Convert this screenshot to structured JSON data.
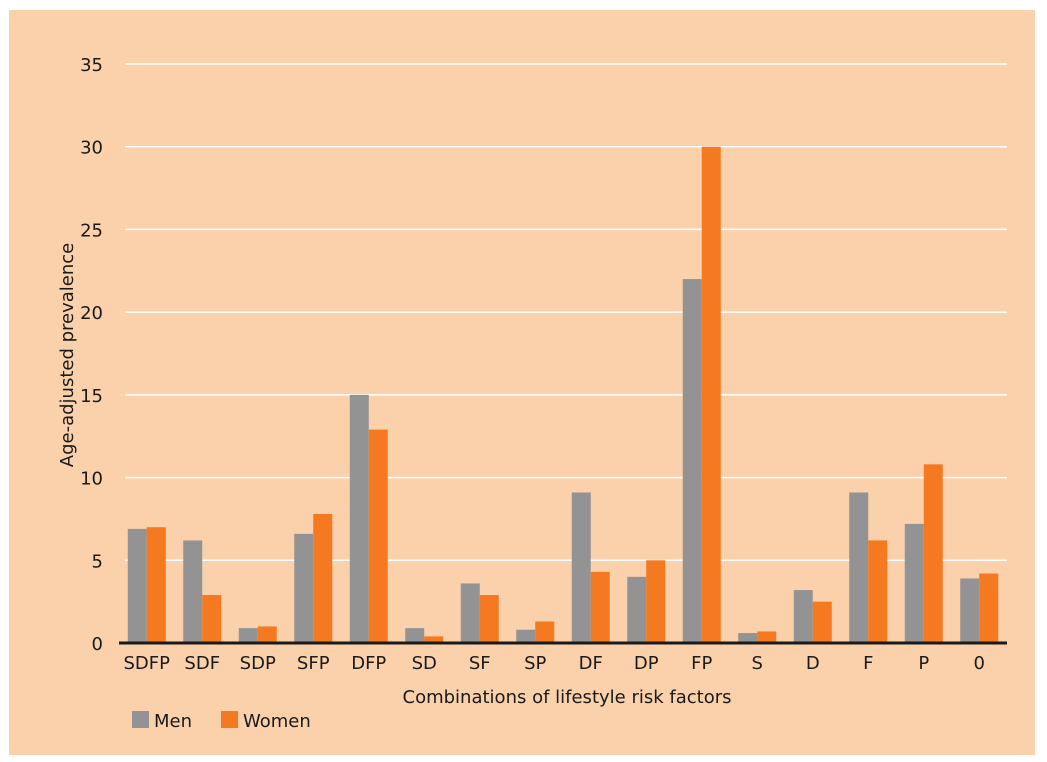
{
  "chart_data": {
    "type": "bar",
    "title": "",
    "xlabel": "Combinations of lifestyle risk factors",
    "ylabel": "Age-adjusted prevalence",
    "ylim": [
      0,
      35
    ],
    "yticks": [
      0,
      5,
      10,
      15,
      20,
      25,
      30,
      35
    ],
    "grid": true,
    "legend_position": "bottom-left",
    "categories": [
      "SDFP",
      "SDF",
      "SDP",
      "SFP",
      "DFP",
      "SD",
      "SF",
      "SP",
      "DF",
      "DP",
      "FP",
      "S",
      "D",
      "F",
      "P",
      "0"
    ],
    "series": [
      {
        "name": "Men",
        "color": "#939393",
        "values": [
          6.9,
          6.2,
          0.9,
          6.6,
          15.0,
          0.9,
          3.6,
          0.8,
          9.1,
          4.0,
          22.0,
          0.6,
          3.2,
          9.1,
          7.2,
          3.9
        ]
      },
      {
        "name": "Women",
        "color": "#f47920",
        "values": [
          7.0,
          2.9,
          1.0,
          7.8,
          12.9,
          0.4,
          2.9,
          1.3,
          4.3,
          5.0,
          30.0,
          0.7,
          2.5,
          6.2,
          10.8,
          4.2
        ]
      }
    ],
    "background_color": "#fbd1ac",
    "axis_color": "#1a1a1a",
    "grid_color": "#ffffff"
  }
}
